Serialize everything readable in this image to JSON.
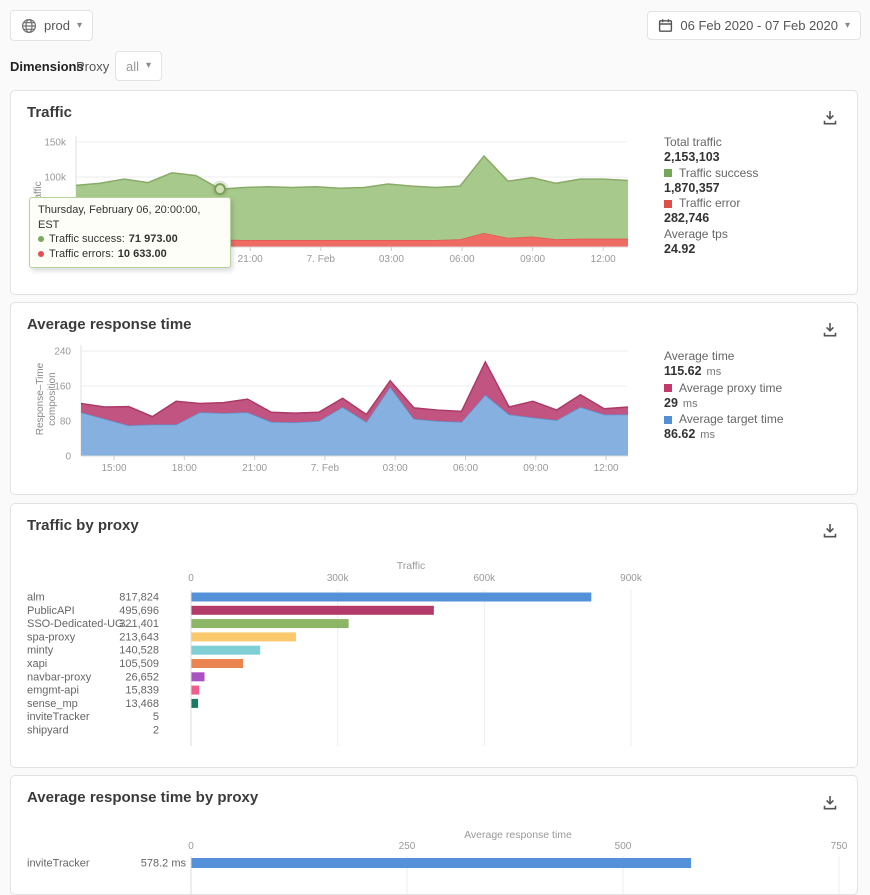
{
  "topbar": {
    "env_label": "prod",
    "date_range": "06 Feb 2020 - 07 Feb 2020",
    "dimensions_label": "Dimensions",
    "dimension_name": "Proxy",
    "dimension_value": "all"
  },
  "panels": {
    "traffic": {
      "title": "Traffic",
      "stats": [
        {
          "label": "Total traffic",
          "value": "2,153,103"
        },
        {
          "label": "Traffic success",
          "value": "1,870,357",
          "color": "#76a65a"
        },
        {
          "label": "Traffic error",
          "value": "282,746",
          "color": "#dd4f49"
        },
        {
          "label": "Average tps",
          "value": "24.92"
        }
      ]
    },
    "response": {
      "title": "Average response time",
      "stats": [
        {
          "label": "Average time",
          "value": "115.62",
          "unit": "ms"
        },
        {
          "label": "Average proxy time",
          "value": "29",
          "unit": "ms",
          "color": "#c13a6b"
        },
        {
          "label": "Average target time",
          "value": "86.62",
          "unit": "ms",
          "color": "#528fd3"
        }
      ]
    },
    "traffic_by_proxy": {
      "title": "Traffic by proxy"
    },
    "response_by_proxy": {
      "title": "Average response time by proxy"
    }
  },
  "tooltip": {
    "title": "Thursday, February 06, 20:00:00, EST",
    "rows": [
      {
        "name": "Traffic success:",
        "value": "71 973.00",
        "color": "#7aa85c"
      },
      {
        "name": "Traffic errors:",
        "value": "10 633.00",
        "color": "#e05050"
      }
    ]
  },
  "chart_data": [
    {
      "id": "traffic",
      "type": "area",
      "title": "Traffic",
      "ylabel": "Traffic",
      "ylim": [
        0,
        150000
      ],
      "yticks": [
        {
          "v": 150000,
          "label": "150k"
        },
        {
          "v": 100000,
          "label": "100k"
        },
        {
          "v": 50000,
          "label": "50k"
        },
        {
          "v": 0,
          "label": "0"
        }
      ],
      "xticks": [
        "15:00",
        "18:00",
        "21:00",
        "7. Feb",
        "03:00",
        "06:00",
        "09:00",
        "12:00"
      ],
      "stacked": true,
      "marker_index": 6,
      "series": [
        {
          "name": "Traffic error",
          "color": "#ee6c64",
          "stroke": "#e25750",
          "values": [
            11000,
            12000,
            11000,
            11000,
            12000,
            11000,
            10633,
            10000,
            10000,
            10000,
            10000,
            10000,
            10000,
            10000,
            10000,
            10000,
            11000,
            20000,
            13000,
            15000,
            11000,
            12000,
            12000,
            12000
          ]
        },
        {
          "name": "Traffic success",
          "color": "#a7c98b",
          "stroke": "#8aab67",
          "values": [
            77000,
            79000,
            86000,
            81000,
            94000,
            91000,
            71973,
            75000,
            76000,
            75000,
            76000,
            74000,
            75000,
            80000,
            77000,
            75000,
            76000,
            110000,
            81000,
            84000,
            80000,
            85000,
            85000,
            83000
          ]
        }
      ]
    },
    {
      "id": "response",
      "type": "area",
      "title": "Average response time",
      "ylabel": "Response–Time\ncomposition",
      "ylim": [
        0,
        240
      ],
      "yticks": [
        {
          "v": 240,
          "label": "240"
        },
        {
          "v": 160,
          "label": "160"
        },
        {
          "v": 80,
          "label": "80"
        },
        {
          "v": 0,
          "label": "0"
        }
      ],
      "xticks": [
        "15:00",
        "18:00",
        "21:00",
        "7. Feb",
        "03:00",
        "06:00",
        "09:00",
        "12:00"
      ],
      "stacked": true,
      "series": [
        {
          "name": "Average target time",
          "color": "#85b0df",
          "stroke": "#6093cf",
          "values": [
            100,
            85,
            70,
            72,
            72,
            100,
            98,
            100,
            78,
            77,
            80,
            112,
            78,
            158,
            85,
            80,
            78,
            140,
            95,
            88,
            82,
            112,
            95,
            95
          ]
        },
        {
          "name": "Average proxy time",
          "color": "#c15480",
          "stroke": "#ab3a66",
          "values": [
            20,
            27,
            43,
            18,
            53,
            20,
            24,
            30,
            22,
            21,
            20,
            20,
            17,
            14,
            25,
            25,
            24,
            75,
            17,
            37,
            23,
            28,
            13,
            17
          ]
        }
      ]
    },
    {
      "id": "traffic_by_proxy",
      "type": "bar",
      "xlabel": "Traffic",
      "xlim": [
        0,
        900000
      ],
      "xticks": [
        {
          "v": 0,
          "label": "0"
        },
        {
          "v": 300000,
          "label": "300k"
        },
        {
          "v": 600000,
          "label": "600k"
        },
        {
          "v": 900000,
          "label": "900k"
        }
      ],
      "categories": [
        "alm",
        "PublicAPI",
        "SSO-Dedicated-UG...",
        "spa-proxy",
        "minty",
        "xapi",
        "navbar-proxy",
        "emgmt-api",
        "sense_mp",
        "inviteTracker",
        "shipyard"
      ],
      "values": [
        817824,
        495696,
        321401,
        213643,
        140528,
        105509,
        26652,
        15839,
        13468,
        5,
        2
      ],
      "value_labels": [
        "817,824",
        "495,696",
        "321,401",
        "213,643",
        "140,528",
        "105,509",
        "26,652",
        "15,839",
        "13,468",
        "5",
        "2"
      ],
      "colors": [
        "#5591d8",
        "#b23b69",
        "#8cb665",
        "#fbc96b",
        "#7ed0d5",
        "#ec8452",
        "#aa52c1",
        "#ee5d8c",
        "#177a67",
        "#5591d8",
        "#b23b69"
      ]
    },
    {
      "id": "response_by_proxy",
      "type": "bar",
      "xlabel": "Average response time",
      "xlim": [
        0,
        750
      ],
      "xticks": [
        {
          "v": 0,
          "label": "0"
        },
        {
          "v": 250,
          "label": "250"
        },
        {
          "v": 500,
          "label": "500"
        },
        {
          "v": 750,
          "label": "750"
        }
      ],
      "categories": [
        "inviteTracker"
      ],
      "values": [
        578.2
      ],
      "value_labels": [
        "578.2 ms"
      ],
      "colors": [
        "#5591d8"
      ]
    }
  ]
}
